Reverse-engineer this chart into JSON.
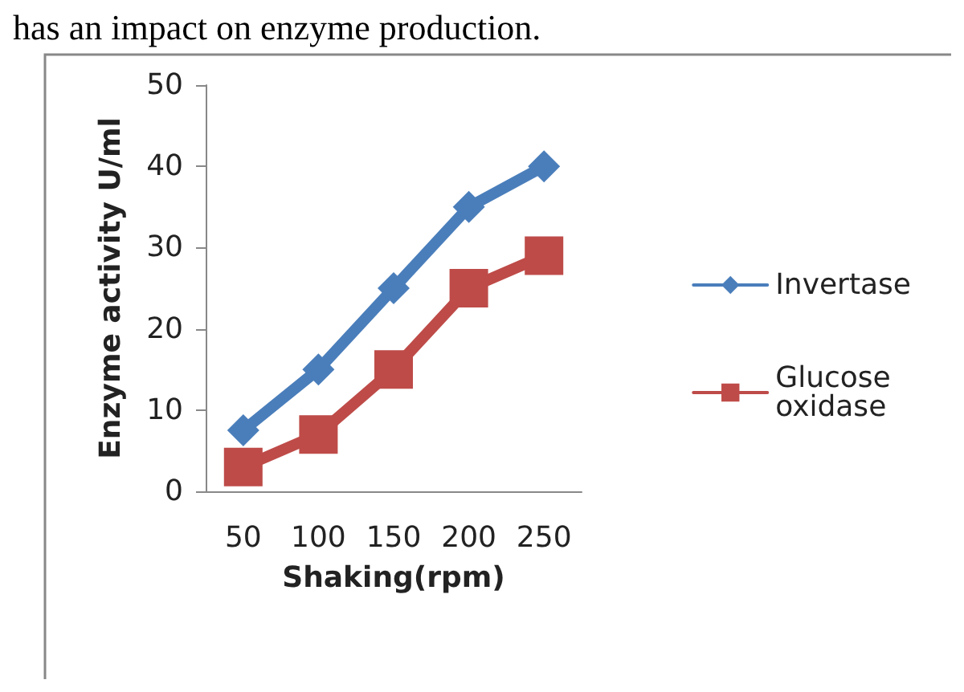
{
  "chart_data": {
    "type": "line",
    "annotations": [
      "has an impact on enzyme production."
    ],
    "xlabel": "Shaking(rpm)",
    "ylabel": "Enzyme activity U/ml",
    "categories": [
      "50",
      "100",
      "150",
      "200",
      "250"
    ],
    "series": [
      {
        "name": "Invertase",
        "color": "#4a7ebb",
        "marker": "diamond",
        "values": [
          7.5,
          15,
          25,
          35,
          40
        ]
      },
      {
        "name": "Glucose oxidase",
        "color": "#be4b48",
        "marker": "square",
        "values": [
          3,
          7,
          15,
          25,
          29
        ]
      }
    ],
    "ylim": [
      0,
      50
    ],
    "yticks": [
      0,
      10,
      20,
      30,
      40,
      50
    ],
    "grid": false,
    "legend": "right"
  }
}
